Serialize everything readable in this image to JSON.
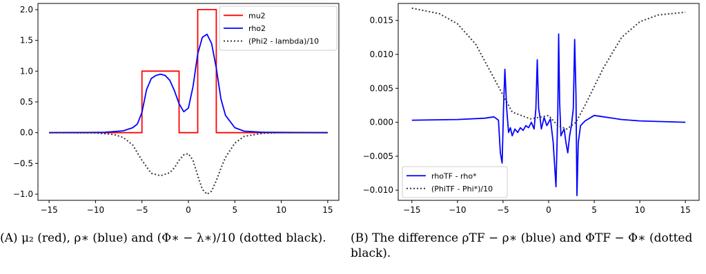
{
  "chart_data": [
    {
      "type": "line",
      "title": "",
      "xlabel": "",
      "ylabel": "",
      "xlim": [
        -16.2,
        16.2
      ],
      "ylim": [
        -1.1,
        2.1
      ],
      "grid": false,
      "x_ticks": [
        -15,
        -10,
        -5,
        0,
        5,
        10,
        15
      ],
      "y_ticks": [
        -1.0,
        -0.5,
        0.0,
        0.5,
        1.0,
        1.5,
        2.0
      ],
      "x_tick_labels": [
        "−15",
        "−10",
        "−5",
        "0",
        "5",
        "10",
        "15"
      ],
      "y_tick_labels": [
        "−1.0",
        "−0.5",
        "0.0",
        "0.5",
        "1.0",
        "1.5",
        "2.0"
      ],
      "legend_position": "top-right",
      "series": [
        {
          "name": "mu2",
          "color": "#ff0000",
          "style": "solid",
          "x": [
            -15,
            -5,
            -5,
            -1,
            -1,
            1,
            1,
            3,
            3,
            15
          ],
          "y": [
            0,
            0,
            1,
            1,
            0,
            0,
            2,
            2,
            0,
            0
          ]
        },
        {
          "name": "rho2",
          "color": "#0000ff",
          "style": "solid",
          "x": [
            -15,
            -9,
            -7,
            -6,
            -5.5,
            -5,
            -4.5,
            -4,
            -3.5,
            -3,
            -2.5,
            -2,
            -1.5,
            -1,
            -0.5,
            0,
            0.5,
            1,
            1.5,
            2,
            2.5,
            3,
            3.5,
            4,
            5,
            6,
            8,
            15
          ],
          "y": [
            0,
            0.005,
            0.03,
            0.08,
            0.14,
            0.33,
            0.7,
            0.88,
            0.93,
            0.95,
            0.93,
            0.85,
            0.68,
            0.47,
            0.34,
            0.4,
            0.75,
            1.28,
            1.55,
            1.6,
            1.45,
            1.05,
            0.55,
            0.28,
            0.08,
            0.025,
            0.005,
            0
          ]
        },
        {
          "name": "(Phi2 - lambda)/10",
          "color": "#333333",
          "style": "dotted",
          "x": [
            -15,
            -10,
            -8,
            -7,
            -6,
            -5,
            -4,
            -3,
            -2,
            -1.5,
            -1,
            -0.5,
            0,
            0.5,
            1,
            1.5,
            2,
            2.5,
            3,
            3.5,
            4,
            5,
            6,
            8,
            10,
            15
          ],
          "y": [
            0,
            -0.005,
            -0.03,
            -0.08,
            -0.2,
            -0.45,
            -0.66,
            -0.7,
            -0.65,
            -0.57,
            -0.45,
            -0.36,
            -0.34,
            -0.45,
            -0.7,
            -0.92,
            -1.0,
            -0.95,
            -0.78,
            -0.58,
            -0.4,
            -0.17,
            -0.06,
            -0.01,
            0,
            0
          ]
        }
      ]
    },
    {
      "type": "line",
      "title": "",
      "xlabel": "",
      "ylabel": "",
      "xlim": [
        -16.5,
        16.5
      ],
      "ylim": [
        -0.0115,
        0.0175
      ],
      "grid": false,
      "x_ticks": [
        -15,
        -10,
        -5,
        0,
        5,
        10,
        15
      ],
      "y_ticks": [
        -0.01,
        -0.005,
        0.0,
        0.005,
        0.01,
        0.015
      ],
      "x_tick_labels": [
        "−15",
        "−10",
        "−5",
        "0",
        "5",
        "10",
        "15"
      ],
      "y_tick_labels": [
        "−0.010",
        "−0.005",
        "0.000",
        "0.005",
        "0.010",
        "0.015"
      ],
      "legend_position": "bottom-left",
      "series": [
        {
          "name": "rhoTF - rho*",
          "color": "#0000ff",
          "style": "solid",
          "x": [
            -15,
            -10,
            -7,
            -6,
            -5.5,
            -5.3,
            -5.1,
            -4.95,
            -4.8,
            -4.6,
            -4.4,
            -4.2,
            -4,
            -3.7,
            -3.4,
            -3.1,
            -2.8,
            -2.5,
            -2.2,
            -1.9,
            -1.6,
            -1.4,
            -1.25,
            -1.1,
            -0.95,
            -0.8,
            -0.5,
            -0.2,
            0.2,
            0.5,
            0.8,
            1.0,
            1.1,
            1.2,
            1.35,
            1.5,
            1.7,
            1.9,
            2.1,
            2.3,
            2.5,
            2.7,
            2.85,
            3.0,
            3.1,
            3.25,
            3.5,
            4,
            5,
            6,
            8,
            10,
            15
          ],
          "y": [
            0.0003,
            0.0004,
            0.0006,
            0.0008,
            0.0003,
            -0.0045,
            -0.006,
            0.002,
            0.0078,
            0.002,
            -0.0015,
            -0.0008,
            -0.002,
            -0.001,
            -0.0015,
            -0.0008,
            -0.0012,
            -0.0005,
            -0.0008,
            0.0,
            -0.001,
            0.002,
            0.0092,
            0.002,
            0.0008,
            -0.001,
            0.0007,
            -0.0005,
            0.0005,
            -0.003,
            -0.0095,
            0.001,
            0.013,
            0.003,
            -0.002,
            -0.0015,
            -0.001,
            -0.003,
            -0.0045,
            -0.002,
            -0.0005,
            0.002,
            0.0122,
            0.004,
            -0.0108,
            -0.003,
            -0.0005,
            0.0002,
            0.001,
            0.0008,
            0.0004,
            0.0002,
            0.0
          ]
        },
        {
          "name": "(PhiTF - Phi*)/10",
          "color": "#333333",
          "style": "dotted",
          "x": [
            -15,
            -12,
            -10,
            -8,
            -6,
            -4,
            -2,
            0,
            1,
            2,
            3,
            4,
            6,
            8,
            10,
            12,
            15
          ],
          "y": [
            0.0168,
            0.016,
            0.0145,
            0.0115,
            0.0065,
            0.0015,
            0.0005,
            0.001,
            -0.0005,
            -0.001,
            0.0,
            0.0025,
            0.008,
            0.0125,
            0.0148,
            0.0158,
            0.0162
          ]
        }
      ]
    }
  ],
  "captions": [
    {
      "label": "(A)",
      "text": " μ₂ (red), ρ∗ (blue) and (Φ∗ − λ∗)/10 (dotted black)."
    },
    {
      "label": "(B)",
      "text": " The difference ρTF − ρ∗ (blue) and ΦTF − Φ∗ (dotted black)."
    }
  ]
}
